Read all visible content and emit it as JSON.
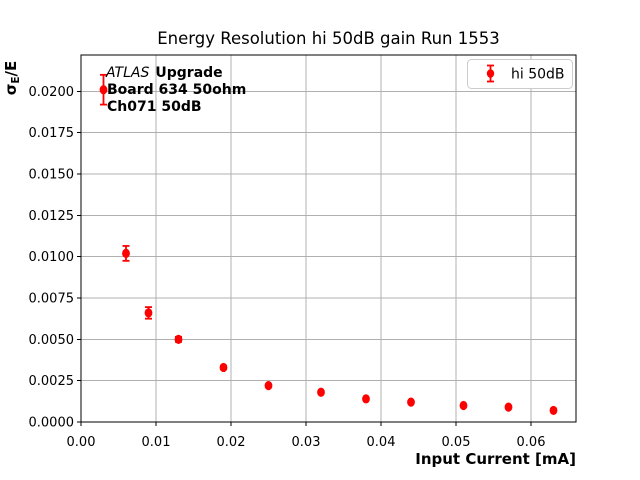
{
  "window": {
    "background": "#ffffff"
  },
  "chart_data": {
    "type": "scatter",
    "title": "Energy Resolution hi 50dB gain Run 1553",
    "xlabel": "Input Current [mA]",
    "ylabel": {
      "plain": "σE/E",
      "sigma": "σ",
      "sub": "E",
      "rest": "/E"
    },
    "xlim": [
      0.0,
      0.066
    ],
    "ylim": [
      0.0,
      0.0222
    ],
    "x_ticks": [
      0.0,
      0.01,
      0.02,
      0.03,
      0.04,
      0.05,
      0.06
    ],
    "x_tick_labels": [
      "0.00",
      "0.01",
      "0.02",
      "0.03",
      "0.04",
      "0.05",
      "0.06"
    ],
    "y_ticks": [
      0.0,
      0.0025,
      0.005,
      0.0075,
      0.01,
      0.0125,
      0.015,
      0.0175,
      0.02
    ],
    "y_tick_labels": [
      "0.0000",
      "0.0025",
      "0.0050",
      "0.0075",
      "0.0100",
      "0.0125",
      "0.0150",
      "0.0175",
      "0.0200"
    ],
    "grid": true,
    "legend": {
      "position": "upper right",
      "label": "hi 50dB"
    },
    "annotation": {
      "line1_italic": "ATLAS",
      "line1_bold": "Upgrade",
      "line2": "Board 634 50ohm",
      "line3": "Ch071 50dB"
    },
    "series": [
      {
        "name": "hi 50dB",
        "color": "#ff0000",
        "marker": "circle",
        "x": [
          0.003,
          0.006,
          0.009,
          0.013,
          0.019,
          0.025,
          0.032,
          0.038,
          0.044,
          0.051,
          0.057,
          0.063
        ],
        "y": [
          0.0201,
          0.0102,
          0.0066,
          0.005,
          0.0033,
          0.0022,
          0.0018,
          0.0014,
          0.0012,
          0.001,
          0.0009,
          0.0007
        ],
        "yerr": [
          0.0009,
          0.00045,
          0.00035,
          0.00015,
          0.0001,
          8e-05,
          7e-05,
          6e-05,
          5e-05,
          5e-05,
          4e-05,
          4e-05
        ]
      }
    ],
    "colors": {
      "series": "#ff0000",
      "grid": "#b0b0b0",
      "spine": "#000000",
      "text": "#000000",
      "legend_edge": "#cccccc",
      "background": "#ffffff"
    }
  }
}
